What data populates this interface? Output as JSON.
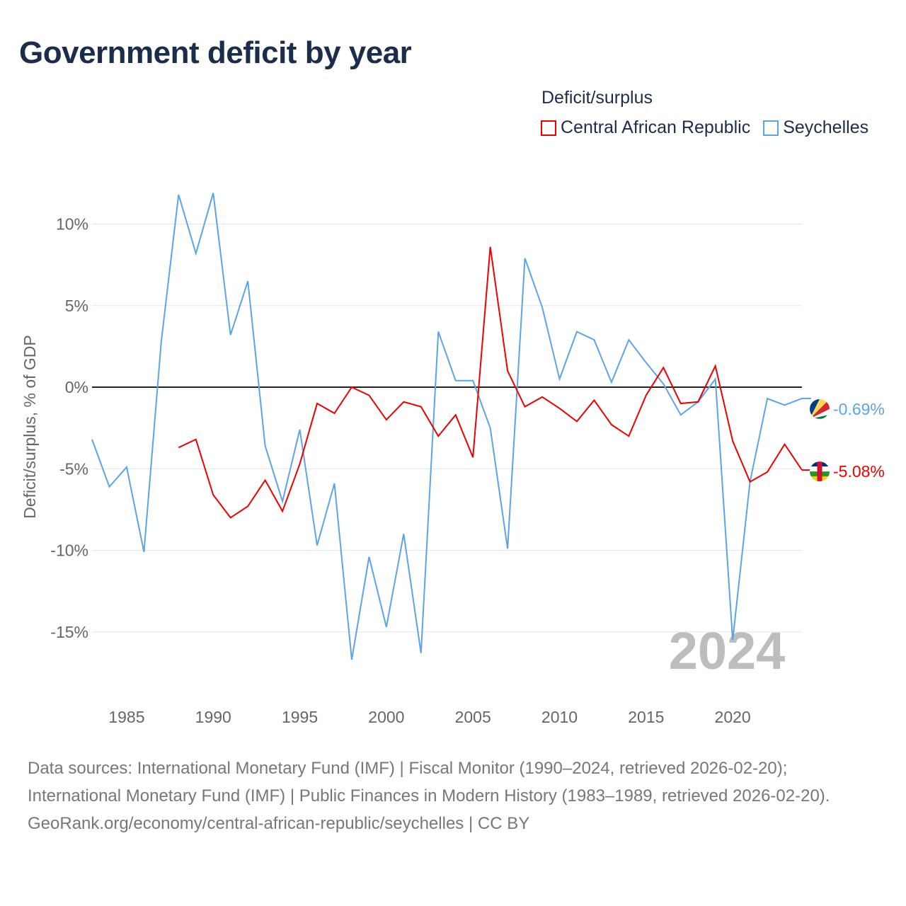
{
  "title": "Government deficit by year",
  "legend": {
    "title": "Deficit/surplus"
  },
  "chart_data": {
    "type": "line",
    "title": "Government deficit by year",
    "xlabel": "",
    "ylabel": "Deficit/surplus, % of GDP",
    "xlim": [
      1983,
      2024
    ],
    "ylim": [
      -18,
      14
    ],
    "x_ticks": [
      1985,
      1990,
      1995,
      2000,
      2005,
      2010,
      2015,
      2020
    ],
    "y_ticks": [
      10,
      5,
      0,
      -5,
      -10,
      -15
    ],
    "y_tick_labels": [
      "10%",
      "5%",
      "0%",
      "-5%",
      "-10%",
      "-15%"
    ],
    "year_watermark": "2024",
    "legend_placement": "top-right",
    "series": [
      {
        "name": "Central African Republic",
        "color": "#ee0000",
        "end_label": "-5.08%",
        "start_year": 1988,
        "values": [
          -3.7,
          -3.2,
          -6.6,
          -8.0,
          -7.3,
          -5.7,
          -7.6,
          -4.7,
          -1.0,
          -1.6,
          0.0,
          -0.5,
          -2.0,
          -0.9,
          -1.2,
          -3.0,
          -1.7,
          -4.3,
          8.6,
          1.0,
          -1.2,
          -0.6,
          -1.3,
          -2.1,
          -0.8,
          -2.3,
          -3.0,
          -0.5,
          1.2,
          -1.0,
          -0.9,
          1.3,
          -3.3,
          -5.8,
          -5.2,
          -3.5,
          -5.08
        ]
      },
      {
        "name": "Seychelles",
        "color": "#5ba4e6",
        "end_label": "-0.69%",
        "start_year": 1983,
        "values": [
          -3.2,
          -6.1,
          -4.9,
          -10.1,
          2.8,
          11.8,
          8.2,
          11.9,
          3.2,
          6.5,
          -3.6,
          -7.0,
          -2.6,
          -9.7,
          -5.9,
          -16.7,
          -10.4,
          -14.7,
          -9.0,
          -16.3,
          3.4,
          0.4,
          0.4,
          -2.5,
          -9.9,
          7.9,
          4.9,
          0.5,
          3.4,
          2.9,
          0.3,
          2.9,
          1.5,
          0.2,
          -1.7,
          -0.9,
          0.5,
          -15.5,
          -5.8,
          -0.7,
          -1.1,
          -0.69
        ]
      }
    ]
  },
  "footer": {
    "sources": "Data sources: International Monetary Fund (IMF) | Fiscal Monitor (1990–2024, retrieved 2026-02-20); International Monetary Fund (IMF) | Public Finances in Modern History (1983–1989, retrieved 2026-02-20).",
    "link": "GeoRank.org/economy/central-african-republic/seychelles | CC BY"
  }
}
